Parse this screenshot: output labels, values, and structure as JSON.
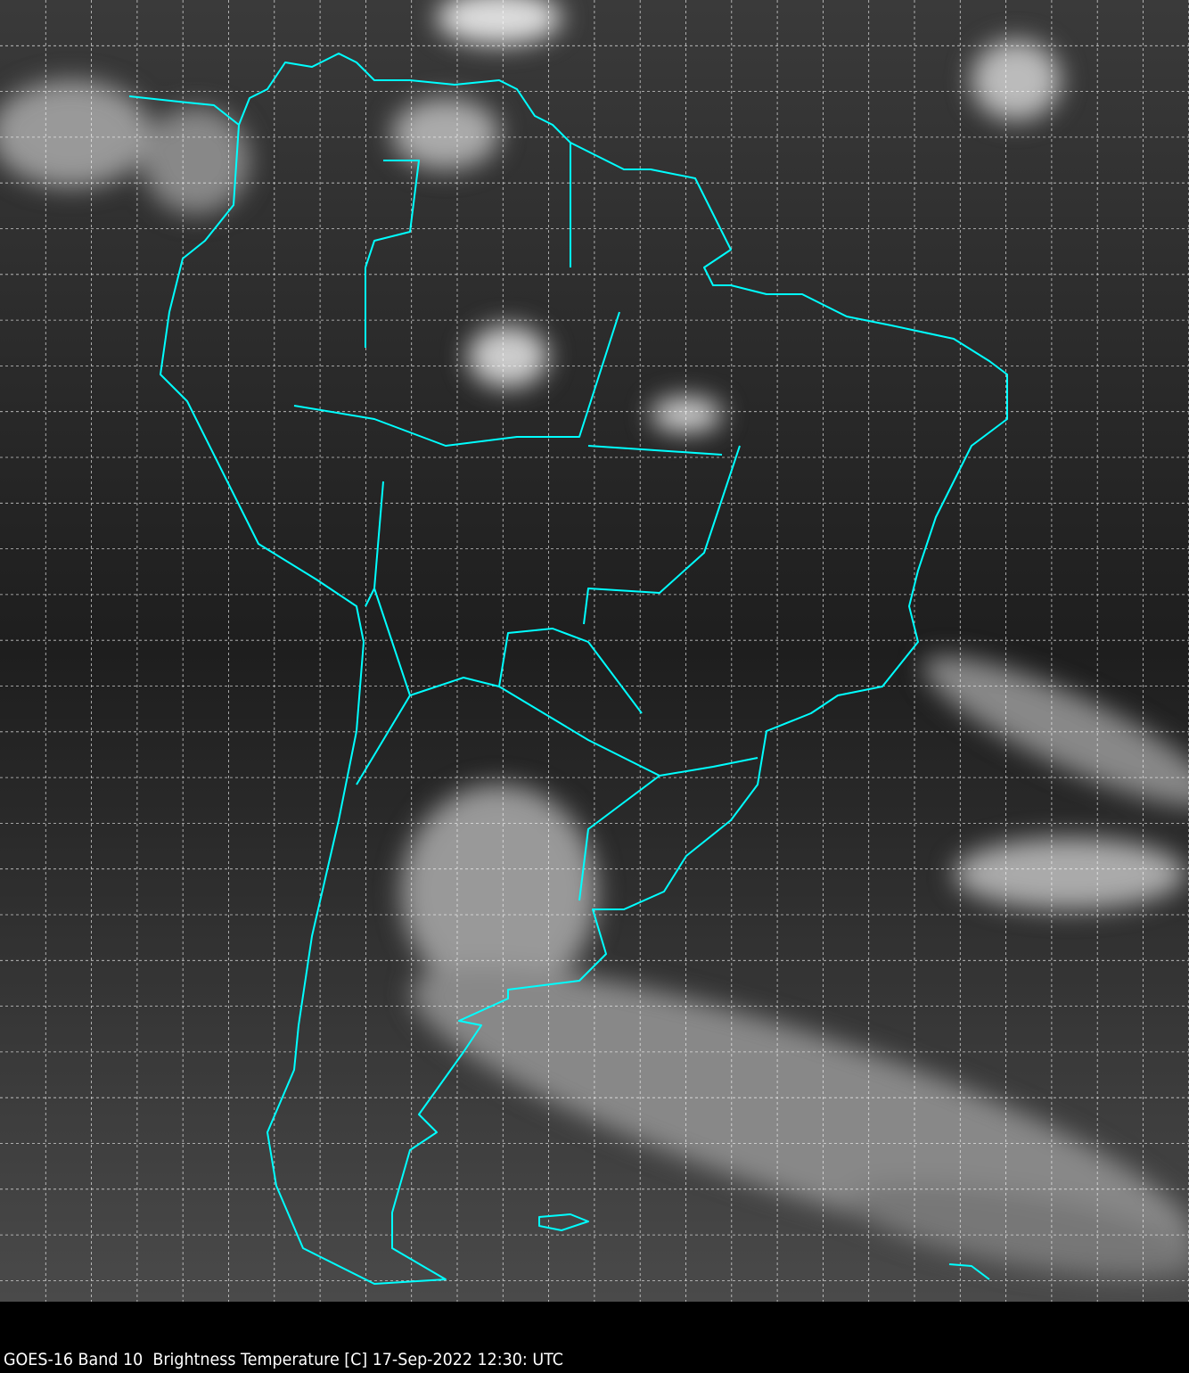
{
  "caption": "GOES-16 Band 10  Brightness Temperature [C] 17-Sep-2022 12:30: UTC",
  "colors": {
    "coastline": "#00ffff",
    "grid": "#ffffff",
    "background": "#000000"
  },
  "map": {
    "region": "South America",
    "grid": "dashed lat/lon graticule",
    "colormap": "grayscale"
  }
}
